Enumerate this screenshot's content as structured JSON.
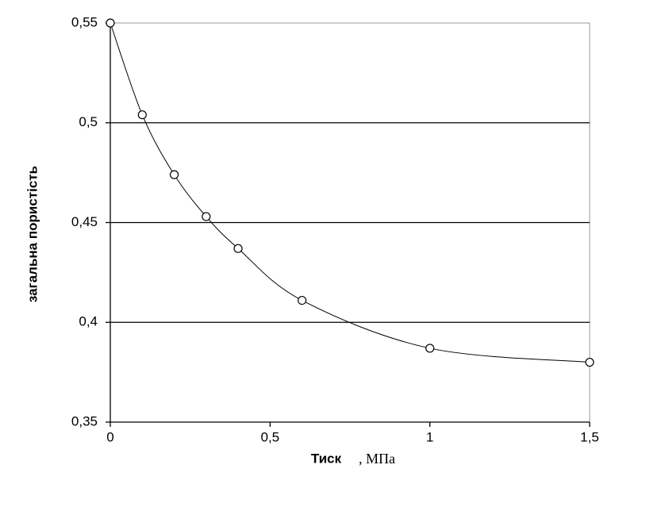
{
  "chart_data": {
    "type": "line",
    "ylabel": "загальна пористість",
    "xlabel": "Тиск",
    "xlabel_unit": ", МПа",
    "x": [
      0,
      0.1,
      0.2,
      0.3,
      0.4,
      0.6,
      1,
      1.5
    ],
    "series": [
      {
        "color": "#000000",
        "values": [
          0.55,
          0.504,
          0.474,
          0.453,
          0.437,
          0.411,
          0.387,
          0.38
        ]
      }
    ],
    "xlim": [
      0,
      1.5
    ],
    "xticks": [
      0,
      {
        "value": 0.5,
        "label": "0,5"
      },
      1,
      {
        "value": 1.5,
        "label": "1,5"
      }
    ],
    "ylim": [
      0.35,
      0.55
    ],
    "yticks": [
      {
        "value": 0.35,
        "label": "0,35"
      },
      {
        "value": 0.4,
        "label": "0,4"
      },
      {
        "value": 0.45,
        "label": "0,45"
      },
      {
        "value": 0.5,
        "label": "0,5"
      },
      {
        "value": 0.55,
        "label": "0,55"
      }
    ],
    "grid": true
  }
}
